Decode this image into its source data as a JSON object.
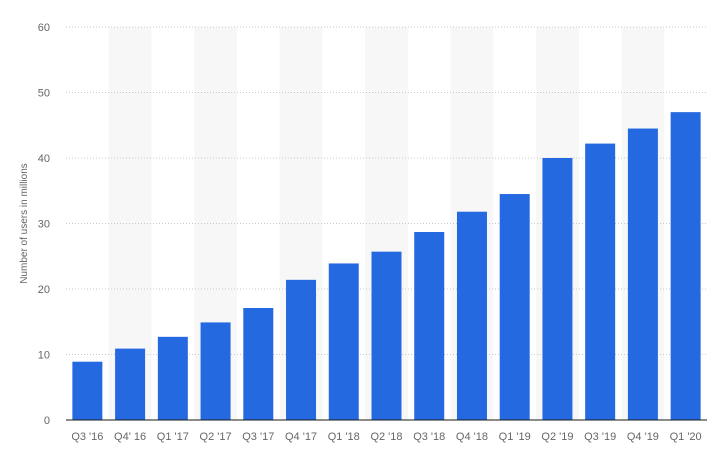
{
  "chart_data": {
    "type": "bar",
    "categories": [
      "Q3 '16",
      "Q4' 16",
      "Q1 '17",
      "Q2 '17",
      "Q3 '17",
      "Q4 '17",
      "Q1 '18",
      "Q2 '18",
      "Q3 '18",
      "Q4 '18",
      "Q1 '19",
      "Q2 '19",
      "Q3 '19",
      "Q4 '19",
      "Q1 '20"
    ],
    "values": [
      8.9,
      10.9,
      12.7,
      14.9,
      17.1,
      21.4,
      23.9,
      25.7,
      28.7,
      31.8,
      34.5,
      40.0,
      42.2,
      44.5,
      47.0
    ],
    "ylabel": "Number of users in millions",
    "xlabel": "",
    "ylim": [
      0,
      60
    ],
    "yticks": [
      0,
      10,
      20,
      30,
      40,
      50,
      60
    ],
    "grid": true,
    "alternating_column_shading": true,
    "colors": {
      "bar": "#2569e0",
      "grid": "#c8c8c8",
      "band": "#f7f7f7",
      "axis": "#1a1a1a",
      "tick_text": "#666666"
    }
  }
}
